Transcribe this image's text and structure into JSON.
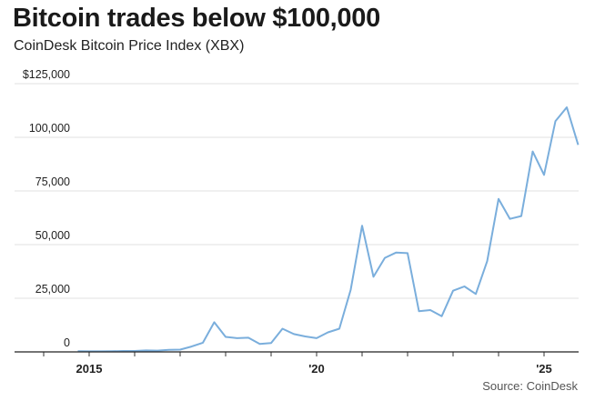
{
  "chart_data": {
    "type": "line",
    "title": "Bitcoin trades below $100,000",
    "subtitle": "CoinDesk Bitcoin Price Index (XBX)",
    "source": "Source: CoinDesk",
    "xlim": [
      2013.36,
      2025.76
    ],
    "ylim": [
      0,
      125000
    ],
    "grid": true,
    "line_color": "#7aaedc",
    "y_ticks": [
      {
        "value": 0,
        "label": "0"
      },
      {
        "value": 25000,
        "label": "25,000"
      },
      {
        "value": 50000,
        "label": "50,000"
      },
      {
        "value": 75000,
        "label": "75,000"
      },
      {
        "value": 100000,
        "label": "100,000"
      },
      {
        "value": 125000,
        "label": "$125,000"
      }
    ],
    "x_ticks": [
      {
        "value": 2015,
        "label": "2015"
      },
      {
        "value": 2020,
        "label": "'20"
      },
      {
        "value": 2025,
        "label": "'25"
      }
    ],
    "x_minor_ticks": [
      2014,
      2015,
      2016,
      2017,
      2018,
      2019,
      2020,
      2021,
      2022,
      2023,
      2024,
      2025
    ],
    "x": [
      2014.75,
      2015.0,
      2015.25,
      2015.5,
      2015.75,
      2016.0,
      2016.25,
      2016.5,
      2016.75,
      2017.0,
      2017.25,
      2017.5,
      2017.75,
      2018.0,
      2018.25,
      2018.5,
      2018.75,
      2019.0,
      2019.25,
      2019.5,
      2019.75,
      2020.0,
      2020.25,
      2020.5,
      2020.75,
      2021.0,
      2021.25,
      2021.5,
      2021.75,
      2022.0,
      2022.25,
      2022.5,
      2022.75,
      2023.0,
      2023.25,
      2023.5,
      2023.75,
      2024.0,
      2024.25,
      2024.5,
      2024.75,
      2025.0,
      2025.25,
      2025.5,
      2025.75
    ],
    "values": [
      320,
      250,
      240,
      280,
      420,
      420,
      670,
      610,
      960,
      1070,
      2500,
      4300,
      13800,
      7000,
      6400,
      6600,
      3700,
      4100,
      10800,
      8300,
      7200,
      6400,
      9100,
      10800,
      29000,
      58800,
      35000,
      43800,
      46300,
      46000,
      19000,
      19500,
      16600,
      28500,
      30500,
      27000,
      42300,
      71300,
      62000,
      63300,
      93400,
      82500,
      107500,
      114000,
      96500
    ]
  }
}
